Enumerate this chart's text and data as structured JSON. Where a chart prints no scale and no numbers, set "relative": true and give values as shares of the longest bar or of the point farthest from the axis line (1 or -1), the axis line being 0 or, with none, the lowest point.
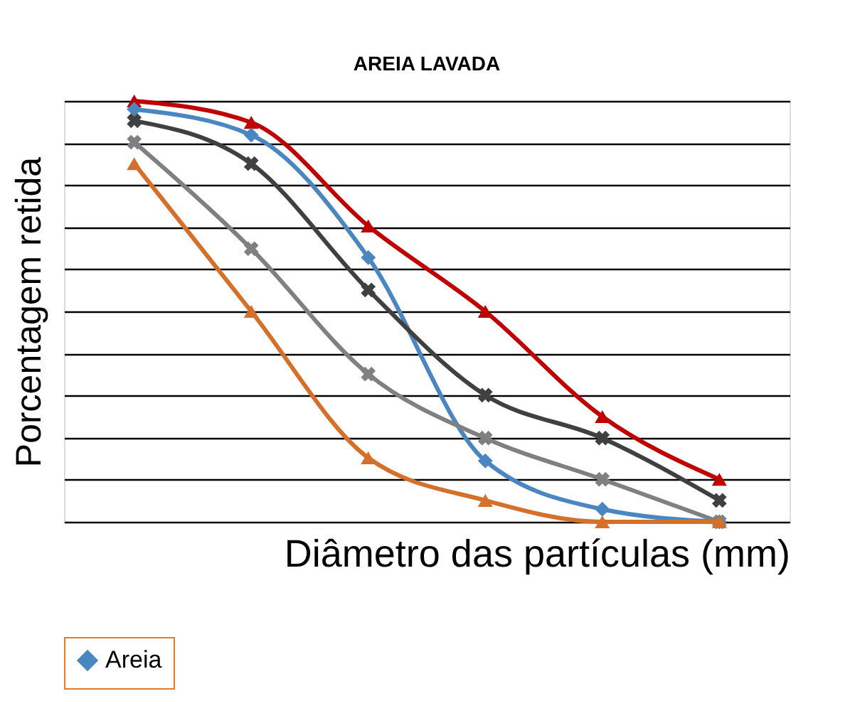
{
  "chart_data": {
    "type": "line",
    "title": "AREIA LAVADA",
    "xlabel": "Diâmetro das partículas (mm)",
    "ylabel": "Porcentagem retida",
    "relative": true,
    "categories": [
      null,
      null,
      null,
      null,
      null,
      null
    ],
    "grid": "y",
    "legend": "bottom",
    "tick_labels": false,
    "series": [
      {
        "color": "#c00000",
        "marker": "triangle",
        "values": [
          1.0,
          0.949,
          0.703,
          0.5,
          0.25,
          0.101
        ]
      },
      {
        "name": "Areia",
        "color": "#4a86c0",
        "marker": "diamond",
        "values": [
          0.98,
          0.919,
          0.628,
          0.145,
          0.03,
          0.0
        ]
      },
      {
        "color": "#404040",
        "marker": "cross",
        "values": [
          0.953,
          0.851,
          0.551,
          0.301,
          0.199,
          0.051
        ]
      },
      {
        "color": "#808080",
        "marker": "cross",
        "values": [
          0.902,
          0.649,
          0.351,
          0.199,
          0.101,
          0.0
        ]
      },
      {
        "color": "#d4702a",
        "marker": "triangle",
        "values": [
          0.851,
          0.5,
          0.152,
          0.051,
          0.0,
          0.0
        ]
      }
    ]
  }
}
